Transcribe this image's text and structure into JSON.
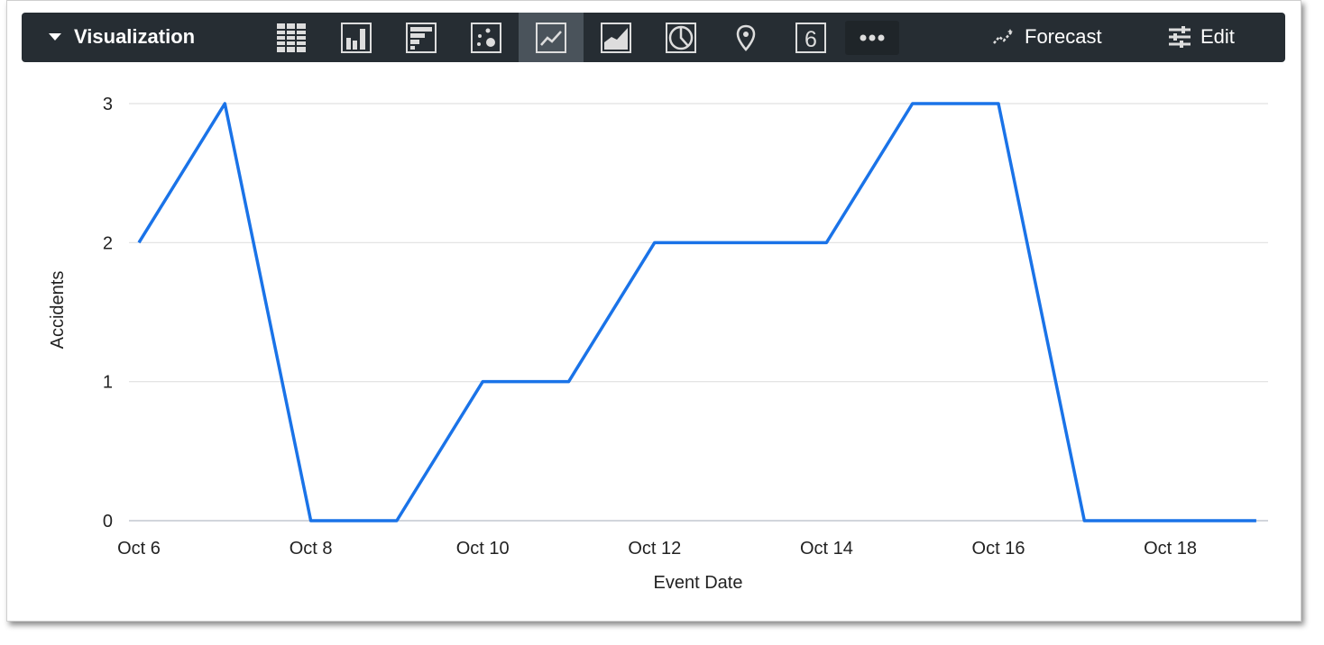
{
  "toolbar": {
    "title": "Visualization",
    "viz_types": [
      "table",
      "column",
      "bar",
      "scatter",
      "line",
      "area",
      "pie",
      "map",
      "single-value",
      "more"
    ],
    "active": "line",
    "single_value_label": "6",
    "forecast_label": "Forecast",
    "edit_label": "Edit"
  },
  "chart_data": {
    "type": "line",
    "x": [
      "Oct 6",
      "Oct 7",
      "Oct 8",
      "Oct 9",
      "Oct 10",
      "Oct 11",
      "Oct 12",
      "Oct 13",
      "Oct 14",
      "Oct 15",
      "Oct 16",
      "Oct 17",
      "Oct 18",
      "Oct 19"
    ],
    "values": [
      2,
      3,
      0,
      0,
      1,
      1,
      2,
      2,
      2,
      3,
      3,
      0,
      0,
      0
    ],
    "x_tick_labels": [
      "Oct 6",
      "Oct 8",
      "Oct 10",
      "Oct 12",
      "Oct 14",
      "Oct 16",
      "Oct 18"
    ],
    "y_ticks": [
      0,
      1,
      2,
      3
    ],
    "ylim": [
      0,
      3
    ],
    "xlabel": "Event Date",
    "ylabel": "Accidents",
    "grid": true,
    "line_color": "#1a73e8"
  }
}
